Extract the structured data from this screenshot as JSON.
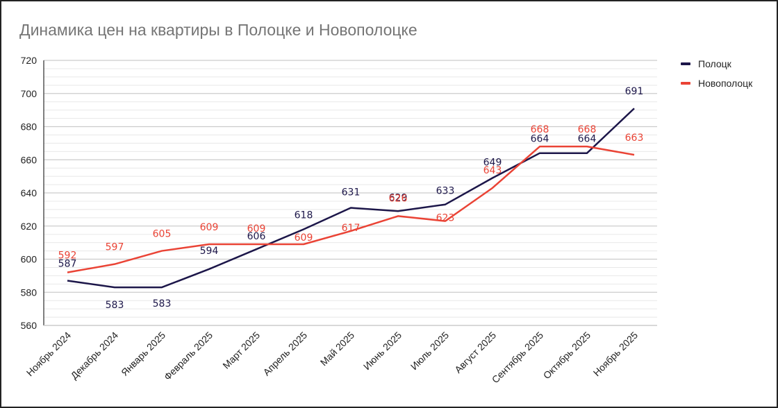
{
  "chart_data": {
    "type": "line",
    "title": "Динамика цен на квартиры в Полоцке и Новополоцке",
    "xlabel": "",
    "ylabel": "",
    "ylim": [
      560,
      720
    ],
    "yticks": [
      560,
      580,
      600,
      620,
      640,
      660,
      680,
      700,
      720
    ],
    "grid": true,
    "legend_position": "right",
    "categories": [
      "Ноябрь 2024",
      "Декабрь 2024",
      "Январь 2025",
      "Февраль 2025",
      "Март 2025",
      "Апрель 2025",
      "Май 2025",
      "Июнь 2025",
      "Июль 2025",
      "Август 2025",
      "Сентябрь 2025",
      "Октябрь 2025",
      "Ноябрь 2025"
    ],
    "series": [
      {
        "name": "Полоцк",
        "color": "#1c1649",
        "values": [
          587,
          583,
          583,
          594,
          606,
          618,
          631,
          629,
          633,
          649,
          664,
          664,
          691
        ]
      },
      {
        "name": "Новополоцк",
        "color": "#ea4335",
        "values": [
          592,
          597,
          605,
          609,
          609,
          609,
          617,
          626,
          623,
          643,
          668,
          668,
          663
        ]
      }
    ]
  },
  "header": {
    "title": "Динамика цен на квартиры в Полоцке и Новополоцке"
  },
  "legend": {
    "items": [
      {
        "label": "Полоцк",
        "color": "#1c1649"
      },
      {
        "label": "Новополоцк",
        "color": "#ea4335"
      }
    ]
  }
}
